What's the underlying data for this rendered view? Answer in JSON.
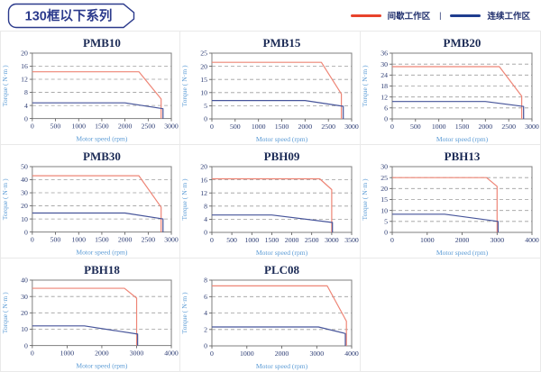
{
  "header": {
    "title": "130框以下系列",
    "legend_separator": "|",
    "legend": [
      {
        "key": "intermittent",
        "label": "间歇工作区",
        "color": "#e8432b"
      },
      {
        "key": "continuous",
        "label": "连续工作区",
        "color": "#1f3d8f"
      }
    ]
  },
  "colors": {
    "curve_red": "#ee8576",
    "curve_blue": "#46549a",
    "navy_text": "#22316e",
    "axis_label_blue": "#5b9bd5",
    "gridline": "#9e9e9e",
    "plot_border": "#7f7f7f",
    "cell_border": "#e9e9e9",
    "tag_border": "#2b3a8c"
  },
  "chart_data": [
    {
      "type": "line",
      "title": "PMB10",
      "xlabel": "Motor speed (rpm)",
      "ylabel": "Torque ( N·m )",
      "xlim": [
        0,
        3000
      ],
      "ylim": [
        0,
        20
      ],
      "xticks": [
        0,
        500,
        1000,
        1500,
        2000,
        2500,
        3000
      ],
      "yticks": [
        0,
        4,
        8,
        12,
        16,
        20
      ],
      "grid": "horizontal-dashed",
      "series": [
        {
          "name": "间歇工作区",
          "key": "intermittent",
          "color": "#ee8576",
          "points": [
            [
              0,
              14.3
            ],
            [
              2300,
              14.3
            ],
            [
              2780,
              6
            ],
            [
              2780,
              0
            ]
          ]
        },
        {
          "name": "连续工作区",
          "key": "continuous",
          "color": "#46549a",
          "points": [
            [
              0,
              4.8
            ],
            [
              2000,
              4.8
            ],
            [
              2820,
              3
            ],
            [
              2820,
              0
            ]
          ]
        }
      ]
    },
    {
      "type": "line",
      "title": "PMB15",
      "xlabel": "Motor speed (rpm)",
      "ylabel": "Torque ( N·m )",
      "xlim": [
        0,
        3000
      ],
      "ylim": [
        0,
        25
      ],
      "xticks": [
        0,
        500,
        1000,
        1500,
        2000,
        2500,
        3000
      ],
      "yticks": [
        0,
        5,
        10,
        15,
        20,
        25
      ],
      "grid": "horizontal-dashed",
      "series": [
        {
          "name": "间歇工作区",
          "key": "intermittent",
          "color": "#ee8576",
          "points": [
            [
              0,
              21.5
            ],
            [
              2350,
              21.5
            ],
            [
              2780,
              9.5
            ],
            [
              2780,
              0
            ]
          ]
        },
        {
          "name": "连续工作区",
          "key": "continuous",
          "color": "#46549a",
          "points": [
            [
              0,
              7
            ],
            [
              2000,
              7
            ],
            [
              2820,
              4.8
            ],
            [
              2820,
              0
            ]
          ]
        }
      ]
    },
    {
      "type": "line",
      "title": "PMB20",
      "xlabel": "Motor speed (rpm)",
      "ylabel": "Torque ( N·m )",
      "xlim": [
        0,
        3000
      ],
      "ylim": [
        0,
        36
      ],
      "xticks": [
        0,
        500,
        1000,
        1500,
        2000,
        2500,
        3000
      ],
      "yticks": [
        0,
        6,
        12,
        18,
        24,
        30,
        36
      ],
      "grid": "horizontal-dashed",
      "series": [
        {
          "name": "间歇工作区",
          "key": "intermittent",
          "color": "#ee8576",
          "points": [
            [
              0,
              28.6
            ],
            [
              2300,
              28.6
            ],
            [
              2780,
              12.5
            ],
            [
              2780,
              0
            ]
          ]
        },
        {
          "name": "连续工作区",
          "key": "continuous",
          "color": "#46549a",
          "points": [
            [
              0,
              9.5
            ],
            [
              2000,
              9.5
            ],
            [
              2820,
              6.8
            ],
            [
              2820,
              0
            ]
          ]
        }
      ]
    },
    {
      "type": "line",
      "title": "PMB30",
      "xlabel": "Motor speed (rpm)",
      "ylabel": "Torque ( N·m )",
      "xlim": [
        0,
        3000
      ],
      "ylim": [
        0,
        50
      ],
      "xticks": [
        0,
        500,
        1000,
        1500,
        2000,
        2500,
        3000
      ],
      "yticks": [
        0,
        10,
        20,
        30,
        40,
        50
      ],
      "grid": "horizontal-dashed",
      "series": [
        {
          "name": "间歇工作区",
          "key": "intermittent",
          "color": "#ee8576",
          "points": [
            [
              0,
              43
            ],
            [
              2300,
              43
            ],
            [
              2780,
              19
            ],
            [
              2780,
              0
            ]
          ]
        },
        {
          "name": "连续工作区",
          "key": "continuous",
          "color": "#46549a",
          "points": [
            [
              0,
              14.5
            ],
            [
              2000,
              14.5
            ],
            [
              2820,
              10
            ],
            [
              2820,
              0
            ]
          ]
        }
      ]
    },
    {
      "type": "line",
      "title": "PBH09",
      "xlabel": "Motor speed (rpm)",
      "ylabel": "Torque ( N·m )",
      "xlim": [
        0,
        3500
      ],
      "ylim": [
        0,
        20
      ],
      "xticks": [
        0,
        500,
        1000,
        1500,
        2000,
        2500,
        3000,
        3500
      ],
      "yticks": [
        0,
        4,
        8,
        12,
        16,
        20
      ],
      "grid": "horizontal-dashed",
      "series": [
        {
          "name": "间歇工作区",
          "key": "intermittent",
          "color": "#ee8576",
          "points": [
            [
              0,
              16.3
            ],
            [
              2700,
              16.3
            ],
            [
              3000,
              13
            ],
            [
              3000,
              0
            ]
          ]
        },
        {
          "name": "连续工作区",
          "key": "continuous",
          "color": "#46549a",
          "points": [
            [
              0,
              5.3
            ],
            [
              1500,
              5.3
            ],
            [
              3020,
              3
            ],
            [
              3020,
              0
            ]
          ]
        }
      ]
    },
    {
      "type": "line",
      "title": "PBH13",
      "xlabel": "Motor speed (rpm)",
      "ylabel": "Torque ( N·m )",
      "xlim": [
        0,
        4000
      ],
      "ylim": [
        0,
        30
      ],
      "xticks": [
        0,
        1000,
        2000,
        3000,
        4000
      ],
      "yticks": [
        0,
        5,
        10,
        15,
        20,
        25,
        30
      ],
      "grid": "horizontal-dashed",
      "series": [
        {
          "name": "间歇工作区",
          "key": "intermittent",
          "color": "#ee8576",
          "points": [
            [
              0,
              25
            ],
            [
              2700,
              25
            ],
            [
              3000,
              21
            ],
            [
              3000,
              0
            ]
          ]
        },
        {
          "name": "连续工作区",
          "key": "continuous",
          "color": "#46549a",
          "points": [
            [
              0,
              8.3
            ],
            [
              1500,
              8.3
            ],
            [
              3030,
              5
            ],
            [
              3030,
              0
            ]
          ]
        }
      ]
    },
    {
      "type": "line",
      "title": "PBH18",
      "xlabel": "Motor speed (rpm)",
      "ylabel": "Torque ( N·m )",
      "xlim": [
        0,
        4000
      ],
      "ylim": [
        0,
        40
      ],
      "xticks": [
        0,
        1000,
        2000,
        3000,
        4000
      ],
      "yticks": [
        0,
        10,
        20,
        30,
        40
      ],
      "grid": "horizontal-dashed",
      "series": [
        {
          "name": "间歇工作区",
          "key": "intermittent",
          "color": "#ee8576",
          "points": [
            [
              0,
              35
            ],
            [
              2650,
              35
            ],
            [
              3000,
              29
            ],
            [
              3000,
              0
            ]
          ]
        },
        {
          "name": "连续工作区",
          "key": "continuous",
          "color": "#46549a",
          "points": [
            [
              0,
              12
            ],
            [
              1500,
              12
            ],
            [
              3030,
              7
            ],
            [
              3030,
              0
            ]
          ]
        }
      ]
    },
    {
      "type": "line",
      "title": "PLC08",
      "xlabel": "Motor speed (rpm)",
      "ylabel": "Torque ( N·m )",
      "xlim": [
        0,
        4000
      ],
      "ylim": [
        0,
        8
      ],
      "xticks": [
        0,
        1000,
        2000,
        3000,
        4000
      ],
      "yticks": [
        0,
        2,
        4,
        6,
        8
      ],
      "grid": "horizontal-dashed",
      "series": [
        {
          "name": "间歇工作区",
          "key": "intermittent",
          "color": "#ee8576",
          "points": [
            [
              0,
              7.3
            ],
            [
              3300,
              7.3
            ],
            [
              3850,
              3
            ],
            [
              3850,
              0
            ]
          ]
        },
        {
          "name": "连续工作区",
          "key": "continuous",
          "color": "#46549a",
          "points": [
            [
              0,
              2.3
            ],
            [
              3050,
              2.3
            ],
            [
              3820,
              1.5
            ],
            [
              3820,
              0
            ]
          ]
        }
      ]
    }
  ]
}
